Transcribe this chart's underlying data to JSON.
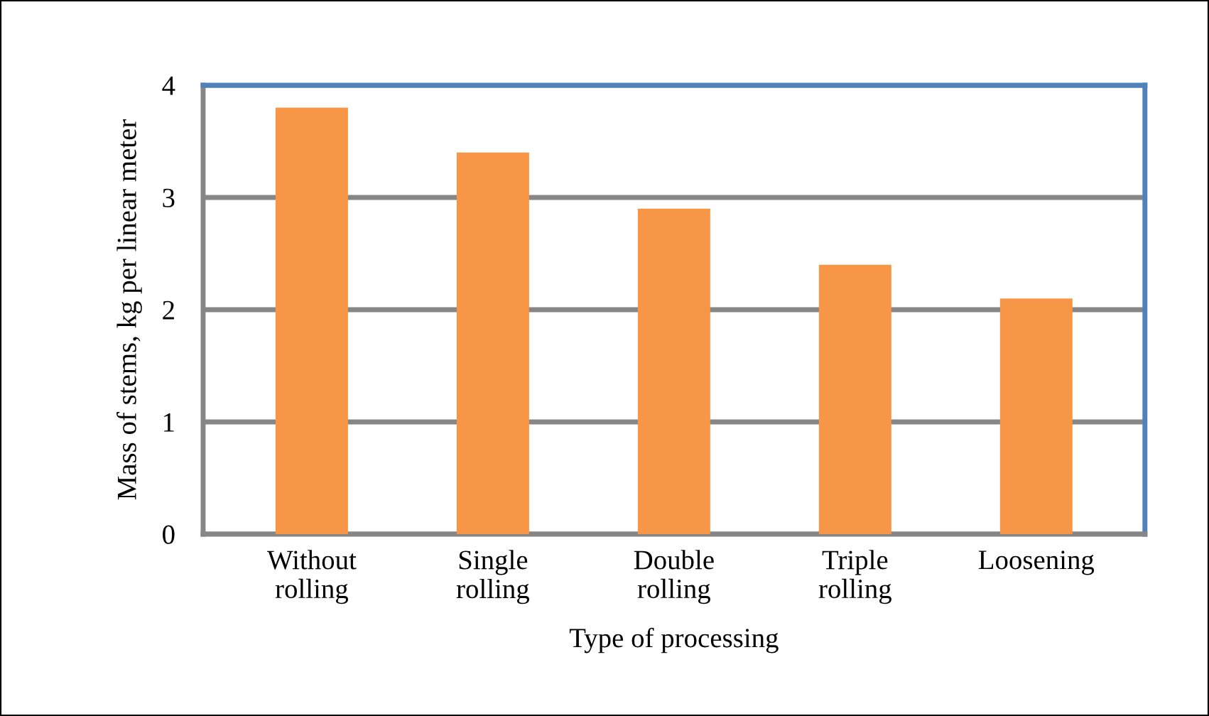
{
  "chart_data": {
    "type": "bar",
    "xlabel": "Type of processing",
    "ylabel": "Mass of stems, kg per linear meter",
    "categories": [
      "Without\nrolling",
      "Single\nrolling",
      "Double\nrolling",
      "Triple\nrolling",
      "Loosening"
    ],
    "values": [
      3.8,
      3.4,
      2.9,
      2.4,
      2.1
    ],
    "color": "#f79646",
    "ylim": [
      0,
      4
    ],
    "yticks": [
      0,
      1,
      2,
      3,
      4
    ],
    "grid": "y"
  }
}
